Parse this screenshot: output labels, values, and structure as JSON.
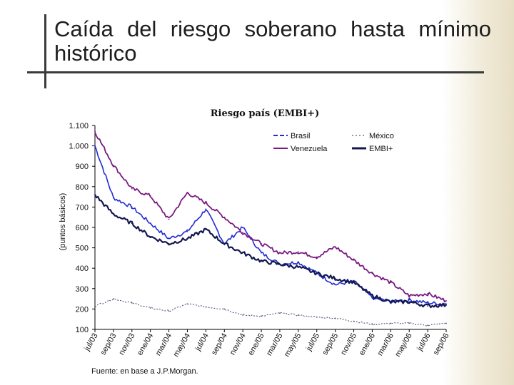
{
  "slide": {
    "title": "Caída del riesgo soberano hasta mínimo histórico"
  },
  "chart_data": {
    "type": "line",
    "title": "Riesgo país (EMBI+)",
    "ylabel": "(puntos básicos)",
    "xlabel": "",
    "ylim": [
      100,
      1100
    ],
    "yticks": [
      100,
      200,
      300,
      400,
      500,
      600,
      700,
      800,
      900,
      1000,
      1100
    ],
    "ytick_labels": [
      "100",
      "200",
      "300",
      "400",
      "500",
      "600",
      "700",
      "800",
      "900",
      "1.000",
      "1.100"
    ],
    "categories": [
      "jul/03",
      "sep/03",
      "nov/03",
      "ene/04",
      "mar/04",
      "may/04",
      "jul/04",
      "sep/04",
      "nov/04",
      "ene/05",
      "mar/05",
      "may/05",
      "jul/05",
      "sep/05",
      "nov/05",
      "ene/06",
      "mar/06",
      "may/06",
      "jul/06",
      "sep/06"
    ],
    "legend_position": "top-right",
    "series": [
      {
        "name": "Brasil",
        "color": "#1f2bd6",
        "dash": "dashed",
        "values": [
          1000,
          745,
          700,
          620,
          545,
          580,
          690,
          520,
          600,
          475,
          420,
          430,
          375,
          320,
          335,
          255,
          235,
          245,
          230,
          225
        ]
      },
      {
        "name": "Venezuela",
        "color": "#7a1a82",
        "dash": "solid",
        "values": [
          1070,
          905,
          790,
          755,
          640,
          770,
          720,
          650,
          575,
          520,
          475,
          480,
          455,
          505,
          440,
          375,
          330,
          265,
          275,
          240
        ]
      },
      {
        "name": "México",
        "color": "#555a7e",
        "dash": "dotted",
        "values": [
          215,
          250,
          230,
          205,
          190,
          225,
          210,
          200,
          170,
          165,
          180,
          170,
          160,
          155,
          140,
          125,
          130,
          130,
          120,
          130
        ]
      },
      {
        "name": "EMBI+",
        "color": "#141850",
        "dash": "solid",
        "values": [
          760,
          665,
          620,
          555,
          520,
          545,
          590,
          520,
          475,
          435,
          420,
          405,
          375,
          350,
          330,
          265,
          235,
          235,
          215,
          220
        ]
      }
    ],
    "source": "Fuente: en base a J.P.Morgan."
  }
}
